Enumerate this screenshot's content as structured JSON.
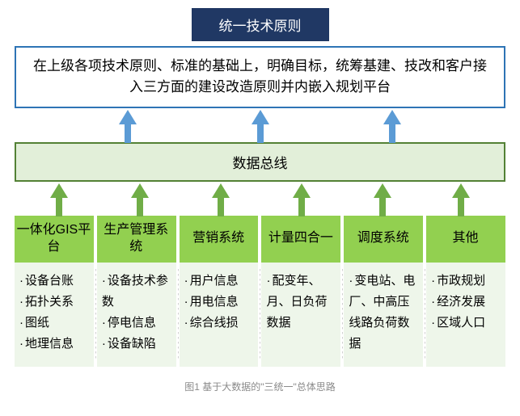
{
  "title": "统一技术原则",
  "description": "在上级各项技术原则、标准的基础上，明确目标，统筹基建、技改和客户接入三方面的建设改造原则并内嵌入规划平台",
  "bus_label": "数据总线",
  "columns": [
    {
      "head": "一体化GIS平台",
      "items": [
        "设备台账",
        "拓扑关系",
        "图纸",
        "地理信息"
      ]
    },
    {
      "head": "生产管理系统",
      "items": [
        "设备技术参数",
        "停电信息",
        "设备缺陷"
      ]
    },
    {
      "head": "营销系统",
      "items": [
        "用户信息",
        "用电信息",
        "综合线损"
      ]
    },
    {
      "head": "计量四合一",
      "items": [
        "配变年、月、日负荷数据"
      ]
    },
    {
      "head": "调度系统",
      "items": [
        "变电站、电厂、中高压线路负荷数据"
      ]
    },
    {
      "head": "其他",
      "items": [
        "市政规划",
        "经济发展",
        "区域人口"
      ]
    }
  ],
  "caption": "图1 基于大数据的\"三统一\"总体思路",
  "style": {
    "title_bg": "#203864",
    "title_border": "#1f3763",
    "title_color": "#ffffff",
    "desc_border": "#2e74b5",
    "bus_bg": "#e2efd9",
    "bus_border": "#538135",
    "col_head_bg": "#92d050",
    "col_body_bg": "#eef6ea",
    "arrow_top_color": "#5b9bd5",
    "arrow_mid_color": "#70ad47",
    "caption_color": "#8a8a8a",
    "top_arrow_positions_pct": [
      23,
      50,
      77
    ],
    "mid_arrow_positions_pct": [
      9,
      25.5,
      42,
      58.5,
      75,
      91
    ]
  }
}
